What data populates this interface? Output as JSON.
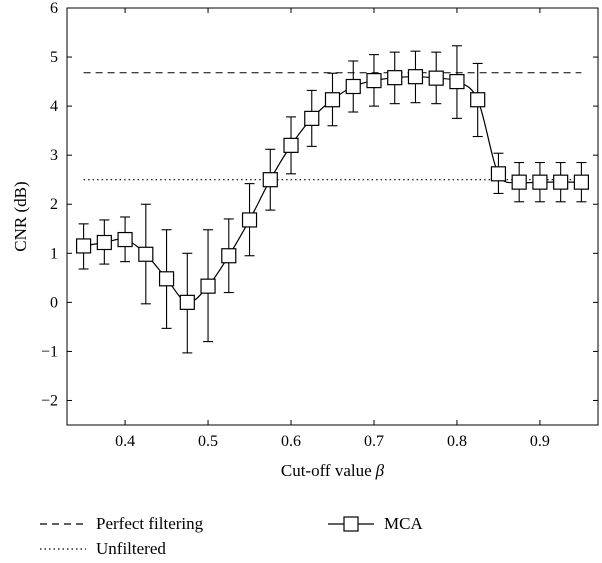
{
  "chart_data": {
    "type": "line",
    "xlabel": "Cut-off value",
    "xlabel_symbol": "β",
    "ylabel": "CNR (dB)",
    "xlim": [
      0.33,
      0.97
    ],
    "ylim": [
      -2.5,
      6
    ],
    "xticks": [
      0.4,
      0.5,
      0.6,
      0.7,
      0.8,
      0.9
    ],
    "xtick_labels": [
      "0.4",
      "0.5",
      "0.6",
      "0.7",
      "0.8",
      "0.9"
    ],
    "yticks": [
      -2,
      -1,
      0,
      1,
      2,
      3,
      4,
      5,
      6
    ],
    "ytick_labels": [
      "−2",
      "−1",
      "0",
      "1",
      "2",
      "3",
      "4",
      "5",
      "6"
    ],
    "grid": false,
    "legend_position": "below",
    "reference_lines": [
      {
        "name": "Perfect filtering",
        "style": "dashed",
        "y": 4.68
      },
      {
        "name": "Unfiltered",
        "style": "dotted",
        "y": 2.5
      }
    ],
    "series": [
      {
        "name": "MCA",
        "marker": "square",
        "x": [
          0.35,
          0.375,
          0.4,
          0.425,
          0.45,
          0.475,
          0.5,
          0.525,
          0.55,
          0.575,
          0.6,
          0.625,
          0.65,
          0.675,
          0.7,
          0.725,
          0.75,
          0.775,
          0.8,
          0.825,
          0.85,
          0.875,
          0.9,
          0.925,
          0.95
        ],
        "y": [
          1.15,
          1.22,
          1.28,
          0.98,
          0.48,
          0.0,
          0.33,
          0.95,
          1.68,
          2.5,
          3.2,
          3.75,
          4.13,
          4.4,
          4.52,
          4.58,
          4.6,
          4.57,
          4.5,
          4.13,
          2.62,
          2.45,
          2.45,
          2.45,
          2.45
        ],
        "y_low": [
          0.68,
          0.78,
          0.83,
          -0.03,
          -0.53,
          -1.03,
          -0.8,
          0.2,
          0.95,
          1.88,
          2.62,
          3.18,
          3.6,
          3.88,
          4.0,
          4.05,
          4.07,
          4.05,
          3.75,
          3.38,
          2.22,
          2.05,
          2.05,
          2.05,
          2.05
        ],
        "y_high": [
          1.6,
          1.68,
          1.74,
          2.0,
          1.48,
          1.0,
          1.48,
          1.7,
          2.42,
          3.12,
          3.78,
          4.32,
          4.67,
          4.92,
          5.05,
          5.1,
          5.12,
          5.1,
          5.23,
          4.87,
          3.04,
          2.85,
          2.85,
          2.85,
          2.85
        ]
      }
    ]
  }
}
